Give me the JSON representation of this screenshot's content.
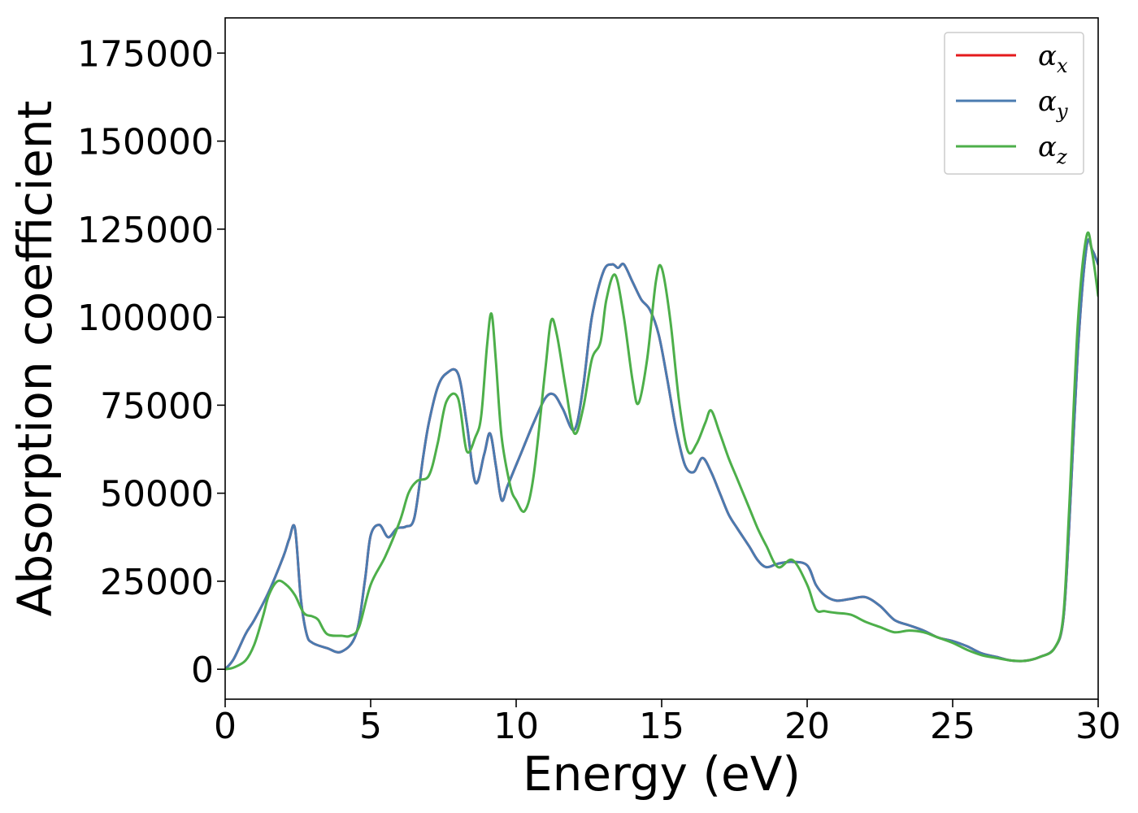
{
  "chart_data": {
    "type": "line",
    "title": "",
    "xlabel": "Energy (eV)",
    "ylabel": "Absorption coefficient",
    "xlim": [
      0,
      30
    ],
    "ylim": [
      -8500,
      185000
    ],
    "xticks": [
      0,
      5,
      10,
      15,
      20,
      25,
      30
    ],
    "xtick_labels": [
      "0",
      "5",
      "10",
      "15",
      "20",
      "25",
      "30"
    ],
    "yticks": [
      0,
      25000,
      50000,
      75000,
      100000,
      125000,
      150000,
      175000
    ],
    "ytick_labels": [
      "0",
      "25000",
      "50000",
      "75000",
      "100000",
      "125000",
      "150000",
      "175000"
    ],
    "grid": false,
    "legend_position": "top-right",
    "series": [
      {
        "name": "α",
        "name_subscript": "x",
        "color": "#e41a1c",
        "x": [
          0,
          0.3,
          0.7,
          1.0,
          1.5,
          2.0,
          2.2,
          2.4,
          2.6,
          2.8,
          3.0,
          3.5,
          4.0,
          4.5,
          4.8,
          5.0,
          5.3,
          5.6,
          5.9,
          6.2,
          6.5,
          6.8,
          7.0,
          7.3,
          7.6,
          8.0,
          8.3,
          8.6,
          8.9,
          9.1,
          9.3,
          9.5,
          9.7,
          10.0,
          10.3,
          10.6,
          11.0,
          11.3,
          11.6,
          12.0,
          12.3,
          12.6,
          13.0,
          13.3,
          13.5,
          13.7,
          14.0,
          14.3,
          14.6,
          14.9,
          15.2,
          15.5,
          15.8,
          16.1,
          16.4,
          16.7,
          17.0,
          17.3,
          17.6,
          18.0,
          18.3,
          18.6,
          19.0,
          19.5,
          20.0,
          20.3,
          20.6,
          21.0,
          21.5,
          22.0,
          22.5,
          23.0,
          23.5,
          24.0,
          24.5,
          25.0,
          25.5,
          26.0,
          26.5,
          27.0,
          27.5,
          28.0,
          28.5,
          28.8,
          29.0,
          29.3,
          29.6,
          29.8,
          30.0
        ],
        "y": [
          0,
          3000,
          10000,
          14000,
          22000,
          32000,
          37000,
          40000,
          20000,
          10000,
          7500,
          6000,
          5000,
          10000,
          25000,
          38000,
          41000,
          37500,
          40000,
          40500,
          43000,
          60000,
          70000,
          80000,
          84000,
          84000,
          70000,
          53000,
          61000,
          67000,
          58000,
          48000,
          52000,
          58000,
          64000,
          70000,
          77000,
          78000,
          74000,
          68000,
          80000,
          100000,
          113000,
          115000,
          114000,
          115000,
          110000,
          105000,
          102000,
          95000,
          82000,
          68000,
          58000,
          56000,
          60000,
          56000,
          50000,
          44000,
          40000,
          35000,
          31000,
          29000,
          30000,
          30500,
          29500,
          24000,
          21000,
          19500,
          20000,
          20500,
          18000,
          14000,
          12500,
          11000,
          9000,
          8000,
          6500,
          4500,
          3500,
          2500,
          2400,
          3500,
          6000,
          14000,
          40000,
          90000,
          120000,
          119000,
          115000
        ]
      },
      {
        "name": "α",
        "name_subscript": "y",
        "color": "#4a7bb0",
        "x": [
          0,
          0.3,
          0.7,
          1.0,
          1.5,
          2.0,
          2.2,
          2.4,
          2.6,
          2.8,
          3.0,
          3.5,
          4.0,
          4.5,
          4.8,
          5.0,
          5.3,
          5.6,
          5.9,
          6.2,
          6.5,
          6.8,
          7.0,
          7.3,
          7.6,
          8.0,
          8.3,
          8.6,
          8.9,
          9.1,
          9.3,
          9.5,
          9.7,
          10.0,
          10.3,
          10.6,
          11.0,
          11.3,
          11.6,
          12.0,
          12.3,
          12.6,
          13.0,
          13.3,
          13.5,
          13.7,
          14.0,
          14.3,
          14.6,
          14.9,
          15.2,
          15.5,
          15.8,
          16.1,
          16.4,
          16.7,
          17.0,
          17.3,
          17.6,
          18.0,
          18.3,
          18.6,
          19.0,
          19.5,
          20.0,
          20.3,
          20.6,
          21.0,
          21.5,
          22.0,
          22.5,
          23.0,
          23.5,
          24.0,
          24.5,
          25.0,
          25.5,
          26.0,
          26.5,
          27.0,
          27.5,
          28.0,
          28.5,
          28.8,
          29.0,
          29.3,
          29.6,
          29.8,
          30.0
        ],
        "y": [
          0,
          3000,
          10000,
          14000,
          22000,
          32000,
          37000,
          40000,
          20000,
          10000,
          7500,
          6000,
          5000,
          10000,
          25000,
          38000,
          41000,
          37500,
          40000,
          40500,
          43000,
          60000,
          70000,
          80000,
          84000,
          84000,
          70000,
          53000,
          61000,
          67000,
          58000,
          48000,
          52000,
          58000,
          64000,
          70000,
          77000,
          78000,
          74000,
          68000,
          80000,
          100000,
          113000,
          115000,
          114000,
          115000,
          110000,
          105000,
          102000,
          95000,
          82000,
          68000,
          58000,
          56000,
          60000,
          56000,
          50000,
          44000,
          40000,
          35000,
          31000,
          29000,
          30000,
          30500,
          29500,
          24000,
          21000,
          19500,
          20000,
          20500,
          18000,
          14000,
          12500,
          11000,
          9000,
          8000,
          6500,
          4500,
          3500,
          2500,
          2400,
          3500,
          6000,
          14000,
          40000,
          90000,
          120000,
          119000,
          115000
        ]
      },
      {
        "name": "α",
        "name_subscript": "z",
        "color": "#4daf4a",
        "x": [
          0,
          0.3,
          0.7,
          1.0,
          1.3,
          1.5,
          1.8,
          2.1,
          2.4,
          2.7,
          3.0,
          3.2,
          3.5,
          4.0,
          4.3,
          4.6,
          5.0,
          5.5,
          6.0,
          6.3,
          6.6,
          7.0,
          7.3,
          7.6,
          8.0,
          8.3,
          8.6,
          8.8,
          9.0,
          9.15,
          9.3,
          9.5,
          9.8,
          10.0,
          10.3,
          10.6,
          11.0,
          11.2,
          11.4,
          11.7,
          12.0,
          12.3,
          12.6,
          12.9,
          13.1,
          13.4,
          13.7,
          14.0,
          14.2,
          14.5,
          14.8,
          15.0,
          15.3,
          15.6,
          15.9,
          16.2,
          16.5,
          16.7,
          17.0,
          17.3,
          17.6,
          18.0,
          18.3,
          18.6,
          19.0,
          19.5,
          20.0,
          20.3,
          20.6,
          21.0,
          21.5,
          22.0,
          22.5,
          23.0,
          23.5,
          24.0,
          24.5,
          25.0,
          25.5,
          26.0,
          26.5,
          27.0,
          27.5,
          28.0,
          28.5,
          28.8,
          29.0,
          29.3,
          29.6,
          29.8,
          30.0
        ],
        "y": [
          0,
          500,
          2500,
          7000,
          15000,
          21000,
          25000,
          24000,
          21000,
          16000,
          15000,
          14000,
          10000,
          9500,
          9500,
          12000,
          24000,
          32000,
          42000,
          50000,
          53500,
          55000,
          64000,
          76000,
          77000,
          62000,
          66000,
          72000,
          92000,
          101000,
          88000,
          66000,
          52000,
          48000,
          45000,
          55000,
          85000,
          99000,
          95000,
          80000,
          67000,
          74000,
          88000,
          93000,
          105000,
          112000,
          100000,
          82000,
          75500,
          88000,
          110000,
          114000,
          99000,
          76000,
          62000,
          64000,
          70000,
          73500,
          67000,
          60000,
          54000,
          46000,
          40000,
          35000,
          29000,
          31000,
          24000,
          17000,
          16500,
          16000,
          15500,
          13500,
          12000,
          10500,
          11000,
          10500,
          9000,
          7500,
          5500,
          4000,
          3200,
          2500,
          2400,
          3500,
          6000,
          15000,
          45000,
          98000,
          123000,
          118000,
          106000
        ]
      }
    ]
  }
}
